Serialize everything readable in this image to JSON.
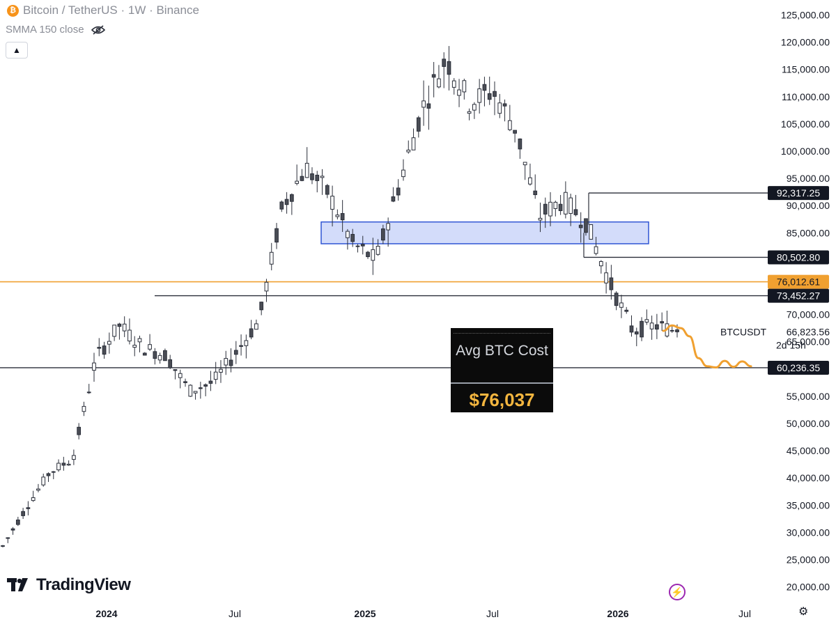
{
  "header": {
    "symbol_icon": "bitcoin-icon",
    "title": "Bitcoin / TetherUS · 1W · Binance",
    "indicator_label": "SMMA 150 close",
    "indicator_icon": "eye-slash-icon",
    "collapse_icon": "chevron-up-icon"
  },
  "branding": {
    "logo_text": "TradingView"
  },
  "overlay": {
    "avg_title": "Avg BTC Cost",
    "avg_value": "$76,037"
  },
  "colors": {
    "up_candle": "#ffffff",
    "down_candle": "#4a4d55",
    "wick": "#2a2e39",
    "orange_line": "#f0a030",
    "zone_fill": "#d3dcfa",
    "zone_border": "#2f55d4"
  },
  "chart_data": {
    "type": "candlestick",
    "title": "Bitcoin / TetherUS · 1W · Binance",
    "y_axis": {
      "min": 20000,
      "max": 125000,
      "ticks": [
        "20,000.00",
        "25,000.00",
        "30,000.00",
        "35,000.00",
        "40,000.00",
        "45,000.00",
        "50,000.00",
        "55,000.00",
        "60,000.00",
        "65,000.00",
        "70,000.00",
        "75,000.00",
        "80,000.00",
        "85,000.00",
        "90,000.00",
        "95,000.00",
        "100,000.00",
        "105,000.00",
        "110,000.00",
        "115,000.00",
        "120,000.00",
        "125,000.00"
      ]
    },
    "x_axis": {
      "ticks": [
        "2024",
        "Jul",
        "2025",
        "Jul",
        "2026",
        "Jul"
      ]
    },
    "price_anchors": [
      [
        25500,
        31000,
        25000,
        27500
      ],
      [
        28000,
        35000,
        27000,
        34500
      ],
      [
        37000,
        43000,
        36000,
        41000
      ],
      [
        42000,
        45000,
        38000,
        43500
      ],
      [
        50000,
        63000,
        50000,
        62000
      ],
      [
        65000,
        73000,
        61000,
        68000
      ],
      [
        70000,
        72000,
        61000,
        64000
      ],
      [
        67000,
        70000,
        58000,
        62500
      ],
      [
        58000,
        63000,
        53000,
        56000
      ],
      [
        60000,
        69000,
        49000,
        57500
      ],
      [
        55000,
        68000,
        52000,
        63000
      ],
      [
        63000,
        73000,
        60000,
        69000
      ],
      [
        74000,
        100000,
        72000,
        90000
      ],
      [
        96000,
        108000,
        90000,
        97000
      ],
      [
        95000,
        106000,
        89000,
        92000
      ],
      [
        96000,
        102000,
        82000,
        83000
      ],
      [
        84000,
        88000,
        75000,
        80000
      ],
      [
        84000,
        95000,
        80000,
        94000
      ],
      [
        104000,
        112000,
        98000,
        108000
      ],
      [
        117000,
        123000,
        110000,
        117000
      ],
      [
        113000,
        124000,
        107000,
        109000
      ],
      [
        122000,
        126200,
        108000,
        111000
      ],
      [
        104000,
        112000,
        96000,
        104000
      ],
      [
        90000,
        94000,
        84000,
        88000
      ],
      [
        89000,
        94000,
        84000,
        91000
      ],
      [
        90000,
        97000,
        86000,
        87000
      ],
      [
        84000,
        87000,
        74000,
        76000
      ],
      [
        73000,
        75500,
        61000,
        67000
      ],
      [
        67000,
        72000,
        64000,
        68000
      ],
      [
        66800,
        68000,
        65500,
        66823.56
      ]
    ],
    "horizontal_levels": [
      {
        "value": 92317.25,
        "label": "92,317.25"
      },
      {
        "value": 80502.8,
        "label": "80,502.80"
      },
      {
        "value": 76012.61,
        "label": "76,012.61",
        "highlight": true
      },
      {
        "value": 73452.27,
        "label": "73,452.27"
      },
      {
        "value": 60236.35,
        "label": "60,236.35"
      }
    ],
    "zone": {
      "top": 87000,
      "bottom": 83000
    },
    "last_price": {
      "symbol": "BTCUSDT",
      "value": "66,823.56",
      "countdown": "2d 15h"
    },
    "projection": [
      67000,
      68000,
      67500,
      66000,
      62000,
      60500,
      60300,
      61500,
      60400,
      61400,
      60500
    ]
  }
}
